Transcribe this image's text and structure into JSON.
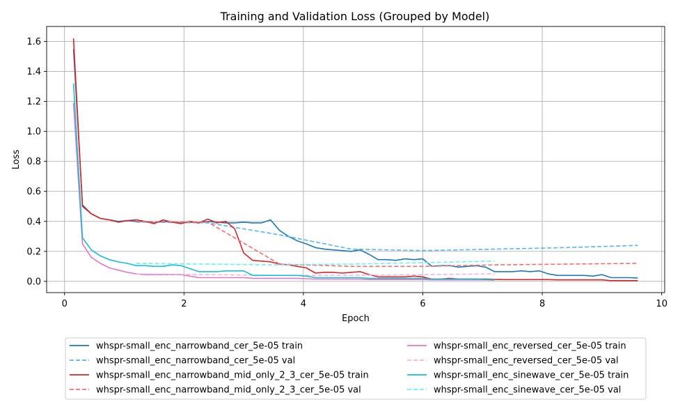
{
  "chart_data": {
    "type": "line",
    "title": "Training and Validation Loss (Grouped by Model)",
    "xlabel": "Epoch",
    "ylabel": "Loss",
    "xlim": [
      -0.3,
      10.05
    ],
    "ylim": [
      -0.075,
      1.7
    ],
    "xticks": [
      0,
      2,
      4,
      6,
      8,
      10
    ],
    "yticks": [
      0.0,
      0.2,
      0.4,
      0.6,
      0.8,
      1.0,
      1.2,
      1.4,
      1.6
    ],
    "grid": true,
    "legend_position": "bottom",
    "series": [
      {
        "name": "whspr-small_enc_narrowband_cer_5e-05 train",
        "color": "#1f77b4",
        "dash": "solid",
        "x": [
          0.15,
          0.3,
          0.45,
          0.6,
          0.75,
          0.9,
          1.05,
          1.2,
          1.35,
          1.5,
          1.65,
          1.8,
          1.95,
          2.1,
          2.25,
          2.4,
          2.55,
          2.7,
          2.85,
          3.0,
          3.15,
          3.3,
          3.45,
          3.6,
          3.75,
          3.9,
          4.05,
          4.2,
          4.35,
          4.5,
          4.65,
          4.8,
          4.95,
          5.1,
          5.25,
          5.4,
          5.55,
          5.7,
          5.85,
          6.0,
          6.15,
          6.3,
          6.45,
          6.6,
          6.75,
          6.9,
          7.05,
          7.2,
          7.35,
          7.5,
          7.65,
          7.8,
          7.95,
          8.1,
          8.25,
          8.4,
          8.55,
          8.7,
          8.85,
          9.0,
          9.15,
          9.3,
          9.45,
          9.6
        ],
        "y": [
          1.55,
          0.51,
          0.45,
          0.42,
          0.41,
          0.4,
          0.405,
          0.4,
          0.4,
          0.39,
          0.4,
          0.395,
          0.39,
          0.395,
          0.39,
          0.4,
          0.395,
          0.39,
          0.39,
          0.395,
          0.39,
          0.39,
          0.41,
          0.34,
          0.3,
          0.27,
          0.25,
          0.225,
          0.215,
          0.21,
          0.205,
          0.2,
          0.21,
          0.18,
          0.145,
          0.145,
          0.14,
          0.15,
          0.145,
          0.15,
          0.1,
          0.105,
          0.105,
          0.095,
          0.1,
          0.105,
          0.095,
          0.065,
          0.065,
          0.065,
          0.07,
          0.065,
          0.07,
          0.05,
          0.04,
          0.04,
          0.04,
          0.04,
          0.035,
          0.045,
          0.025,
          0.025,
          0.025,
          0.022
        ]
      },
      {
        "name": "whspr-small_enc_narrowband_cer_5e-05 val",
        "color": "#5ab4f0",
        "dash": "dashed",
        "x": [
          1.2,
          2.4,
          3.6,
          4.8,
          6.0,
          7.2,
          8.4,
          9.6
        ],
        "y": [
          0.395,
          0.39,
          0.31,
          0.215,
          0.205,
          0.215,
          0.225,
          0.24
        ]
      },
      {
        "name": "whspr-small_enc_narrowband_mid_only_2_3_cer_5e-05 train",
        "color": "#d62728",
        "dash": "solid",
        "x": [
          0.15,
          0.3,
          0.45,
          0.6,
          0.75,
          0.9,
          1.05,
          1.2,
          1.35,
          1.5,
          1.65,
          1.8,
          1.95,
          2.1,
          2.25,
          2.4,
          2.55,
          2.7,
          2.85,
          3.0,
          3.15,
          3.3,
          3.45,
          3.6,
          3.75,
          3.9,
          4.05,
          4.2,
          4.35,
          4.5,
          4.65,
          4.8,
          4.95,
          5.1,
          5.25,
          5.4,
          5.55,
          5.7,
          5.85,
          6.0,
          6.15,
          6.3,
          6.45,
          6.6,
          6.75,
          6.9,
          7.05,
          7.2,
          7.35,
          7.5,
          7.65,
          7.8,
          7.95,
          8.1,
          8.25,
          8.4,
          8.55,
          8.7,
          8.85,
          9.0,
          9.15,
          9.3,
          9.45,
          9.6
        ],
        "y": [
          1.62,
          0.5,
          0.45,
          0.42,
          0.41,
          0.395,
          0.405,
          0.41,
          0.4,
          0.385,
          0.41,
          0.395,
          0.385,
          0.4,
          0.39,
          0.415,
          0.39,
          0.4,
          0.35,
          0.19,
          0.14,
          0.135,
          0.13,
          0.115,
          0.11,
          0.1,
          0.09,
          0.055,
          0.06,
          0.06,
          0.055,
          0.06,
          0.065,
          0.045,
          0.03,
          0.03,
          0.03,
          0.03,
          0.035,
          0.03,
          0.015,
          0.015,
          0.02,
          0.015,
          0.015,
          0.015,
          0.015,
          0.013,
          0.012,
          0.012,
          0.012,
          0.012,
          0.012,
          0.012,
          0.01,
          0.01,
          0.01,
          0.01,
          0.01,
          0.01,
          0.005,
          0.005,
          0.005,
          0.005
        ]
      },
      {
        "name": "whspr-small_enc_narrowband_mid_only_2_3_cer_5e-05 val",
        "color": "#f07070",
        "dash": "dashed",
        "x": [
          1.2,
          2.4,
          3.6,
          4.8,
          6.0,
          7.2,
          8.4,
          9.6
        ],
        "y": [
          0.4,
          0.395,
          0.115,
          0.1,
          0.1,
          0.11,
          0.115,
          0.12
        ]
      },
      {
        "name": "whspr-small_enc_reversed_cer_5e-05 train",
        "color": "#e377c2",
        "dash": "solid",
        "x": [
          0.15,
          0.3,
          0.45,
          0.6,
          0.75,
          0.9,
          1.05,
          1.2,
          1.35,
          1.5,
          1.65,
          1.8,
          1.95,
          2.1,
          2.25,
          2.4,
          2.55,
          2.7,
          2.85,
          3.0,
          3.15,
          3.3,
          3.45,
          3.6,
          3.75,
          3.9,
          4.05,
          4.2,
          4.35,
          4.5,
          4.65,
          4.8,
          4.95,
          5.1,
          5.25,
          5.4,
          5.55,
          5.7,
          5.85,
          6.0,
          6.15,
          6.3,
          6.45,
          6.6,
          6.75,
          6.9,
          7.05,
          7.2
        ],
        "y": [
          1.19,
          0.25,
          0.16,
          0.12,
          0.09,
          0.075,
          0.06,
          0.05,
          0.045,
          0.045,
          0.045,
          0.045,
          0.045,
          0.035,
          0.025,
          0.025,
          0.025,
          0.025,
          0.025,
          0.025,
          0.02,
          0.02,
          0.02,
          0.02,
          0.02,
          0.02,
          0.018,
          0.015,
          0.015,
          0.015,
          0.015,
          0.015,
          0.015,
          0.012,
          0.012,
          0.012,
          0.012,
          0.012,
          0.012,
          0.012,
          0.01,
          0.01,
          0.01,
          0.01,
          0.01,
          0.01,
          0.01,
          0.008
        ]
      },
      {
        "name": "whspr-small_enc_reversed_cer_5e-05 val",
        "color": "#f5b3e0",
        "dash": "dashed",
        "x": [
          1.2,
          2.4,
          3.6,
          4.8,
          6.0,
          7.2
        ],
        "y": [
          0.05,
          0.045,
          0.04,
          0.04,
          0.045,
          0.05
        ]
      },
      {
        "name": "whspr-small_enc_sinewave_cer_5e-05 train",
        "color": "#17becf",
        "dash": "solid",
        "x": [
          0.15,
          0.3,
          0.45,
          0.6,
          0.75,
          0.9,
          1.05,
          1.2,
          1.35,
          1.5,
          1.65,
          1.8,
          1.95,
          2.1,
          2.25,
          2.4,
          2.55,
          2.7,
          2.85,
          3.0,
          3.15,
          3.3,
          3.45,
          3.6,
          3.75,
          3.9,
          4.05,
          4.2,
          4.35,
          4.5,
          4.65,
          4.8,
          4.95,
          5.1,
          5.25,
          5.4,
          5.55,
          5.7,
          5.85,
          6.0,
          6.15,
          6.3,
          6.45,
          6.6,
          6.75,
          6.9,
          7.05,
          7.2
        ],
        "y": [
          1.32,
          0.29,
          0.21,
          0.17,
          0.145,
          0.13,
          0.12,
          0.105,
          0.105,
          0.1,
          0.1,
          0.11,
          0.105,
          0.085,
          0.065,
          0.065,
          0.065,
          0.07,
          0.07,
          0.07,
          0.04,
          0.04,
          0.04,
          0.04,
          0.04,
          0.04,
          0.035,
          0.025,
          0.025,
          0.025,
          0.025,
          0.025,
          0.025,
          0.02,
          0.02,
          0.02,
          0.02,
          0.02,
          0.02,
          0.02,
          0.015,
          0.015,
          0.015,
          0.015,
          0.015,
          0.015,
          0.012,
          0.01
        ]
      },
      {
        "name": "whspr-small_enc_sinewave_cer_5e-05 val",
        "color": "#6af0f5",
        "dash": "dashed",
        "x": [
          1.2,
          2.4,
          3.6,
          4.8,
          6.0,
          7.2
        ],
        "y": [
          0.12,
          0.115,
          0.11,
          0.115,
          0.125,
          0.135
        ]
      }
    ]
  }
}
